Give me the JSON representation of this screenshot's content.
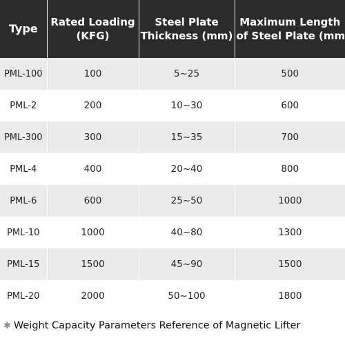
{
  "table": {
    "headers": [
      {
        "lines": [
          "Type"
        ]
      },
      {
        "lines": [
          "Rated Loading",
          "(KFG)"
        ]
      },
      {
        "lines": [
          "Steel Plate",
          "Thickness (mm)"
        ]
      },
      {
        "lines": [
          "Maximum Length",
          "of Steel Plate (mm)"
        ]
      }
    ],
    "rows": [
      [
        "PML-100",
        "100",
        "5~25",
        "500"
      ],
      [
        "PML-2",
        "200",
        "10~30",
        "600"
      ],
      [
        "PML-300",
        "300",
        "15~35",
        "700"
      ],
      [
        "PML-4",
        "400",
        "20~40",
        "800"
      ],
      [
        "PML-6",
        "600",
        "25~50",
        "1000"
      ],
      [
        "PML-10",
        "1000",
        "40~80",
        "1300"
      ],
      [
        "PML-15",
        "1500",
        "45~90",
        "1500"
      ],
      [
        "PML-20",
        "2000",
        "50~100",
        "1800"
      ]
    ]
  },
  "footnote": {
    "marker": "✱",
    "text": "Weight Capacity Parameters Reference of Magnetic Lifter"
  },
  "colors": {
    "header_bg": "#2b2b2b",
    "header_text": "#ffffff",
    "row_stripe": "#ebebeb",
    "row_plain": "#ffffff"
  }
}
